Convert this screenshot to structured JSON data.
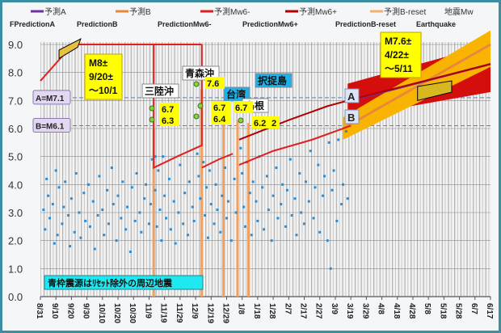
{
  "chart_data": {
    "type": "scatter",
    "legend": {
      "jp": [
        "予測A",
        "予測B",
        "予測Mw6-",
        "予測Mw6+",
        "予測B-reset",
        "地震Mw"
      ],
      "en": [
        "FPredictionA",
        "PredictionB",
        "PredictionMw6-",
        "PredictionMw6+",
        "PredictionB-reset",
        "Earthquake"
      ],
      "colors": [
        "#7030a0",
        "#e8893a",
        "#e02020",
        "#b00000",
        "#f0b070",
        "#2e8bd0"
      ]
    },
    "ylim": [
      0,
      9
    ],
    "yticks": [
      "0.0",
      "1.0",
      "2.0",
      "3.0",
      "4.0",
      "5.0",
      "6.0",
      "7.0",
      "8.0",
      "9.0"
    ],
    "xticks": [
      "8/31",
      "9/10",
      "9/20",
      "9/30",
      "10/10",
      "10/20",
      "10/30",
      "11/9",
      "11/19",
      "11/29",
      "12/9",
      "12/19",
      "12/29",
      "1/8",
      "1/18",
      "1/28",
      "2/7",
      "2/17",
      "2/27",
      "3/9",
      "3/19",
      "3/29",
      "4/8",
      "4/18",
      "4/28",
      "5/8",
      "5/18",
      "5/28",
      "6/7",
      "6/17"
    ],
    "x_unit": "days since 8/31",
    "ref_lines": [
      {
        "label": "A=M7.1",
        "value": 7.1
      },
      {
        "label": "B=M6.1",
        "value": 6.1
      }
    ],
    "mw6minus": [
      [
        [
          0,
          7.7
        ],
        [
          8,
          8.2
        ],
        [
          16,
          8.7
        ],
        [
          22,
          9.0
        ],
        [
          104,
          9.0
        ]
      ],
      [
        [
          73,
          9.0
        ],
        [
          73,
          4.6
        ],
        [
          88,
          5.0
        ],
        [
          104,
          5.4
        ],
        [
          104,
          9.0
        ]
      ],
      [
        [
          104,
          4.6
        ],
        [
          115,
          4.9
        ],
        [
          124,
          5.1
        ]
      ],
      [
        [
          128,
          4.7
        ],
        [
          150,
          5.2
        ],
        [
          175,
          5.6
        ],
        [
          200,
          6.1
        ]
      ]
    ],
    "mw6plus": [
      [
        128,
        5.6
      ],
      [
        160,
        6.3
      ],
      [
        185,
        6.8
      ],
      [
        205,
        7.1
      ],
      [
        290,
        8.3
      ]
    ],
    "predA": [
      [
        200,
        7.0
      ],
      [
        290,
        8.3
      ]
    ],
    "predB": [
      [
        195,
        6.0
      ],
      [
        290,
        9.0
      ]
    ],
    "band_red": {
      "x": [
        198,
        290
      ],
      "low": [
        6.4,
        7.3
      ],
      "high": [
        7.6,
        9.0
      ]
    },
    "breset_x": [
      73,
      104,
      118,
      127,
      134
    ],
    "breset_top": [
      6.0,
      7.4,
      6.2,
      6.3,
      6.2
    ],
    "points": [
      [
        2,
        3.1
      ],
      [
        3,
        2.4
      ],
      [
        4,
        4.2
      ],
      [
        5,
        3.6
      ],
      [
        6,
        2.8
      ],
      [
        8,
        3.3
      ],
      [
        9,
        1.9
      ],
      [
        10,
        4.5
      ],
      [
        11,
        2.2
      ],
      [
        12,
        3.9
      ],
      [
        14,
        2.6
      ],
      [
        15,
        3.2
      ],
      [
        16,
        4.1
      ],
      [
        18,
        2.9
      ],
      [
        19,
        1.8
      ],
      [
        20,
        3.5
      ],
      [
        22,
        2.3
      ],
      [
        23,
        4.4
      ],
      [
        25,
        3.0
      ],
      [
        26,
        2.1
      ],
      [
        28,
        3.7
      ],
      [
        29,
        2.7
      ],
      [
        31,
        4.0
      ],
      [
        32,
        2.5
      ],
      [
        34,
        3.4
      ],
      [
        35,
        1.7
      ],
      [
        37,
        2.9
      ],
      [
        38,
        4.3
      ],
      [
        40,
        3.1
      ],
      [
        41,
        2.2
      ],
      [
        43,
        3.8
      ],
      [
        44,
        2.6
      ],
      [
        46,
        4.6
      ],
      [
        47,
        3.3
      ],
      [
        49,
        2.0
      ],
      [
        50,
        3.6
      ],
      [
        52,
        2.8
      ],
      [
        53,
        4.1
      ],
      [
        55,
        2.4
      ],
      [
        56,
        3.2
      ],
      [
        58,
        1.6
      ],
      [
        59,
        3.9
      ],
      [
        61,
        2.7
      ],
      [
        62,
        4.4
      ],
      [
        64,
        3.0
      ],
      [
        65,
        2.3
      ],
      [
        67,
        3.5
      ],
      [
        68,
        4.0
      ],
      [
        70,
        2.6
      ],
      [
        71,
        3.3
      ],
      [
        72,
        4.9
      ],
      [
        74,
        5.0
      ],
      [
        74,
        3.8
      ],
      [
        75,
        2.5
      ],
      [
        76,
        4.5
      ],
      [
        77,
        3.1
      ],
      [
        78,
        2.0
      ],
      [
        79,
        5.0
      ],
      [
        80,
        3.6
      ],
      [
        81,
        2.8
      ],
      [
        83,
        4.2
      ],
      [
        84,
        2.4
      ],
      [
        86,
        3.4
      ],
      [
        87,
        1.9
      ],
      [
        89,
        3.0
      ],
      [
        90,
        4.7
      ],
      [
        92,
        2.6
      ],
      [
        93,
        3.7
      ],
      [
        95,
        2.2
      ],
      [
        96,
        4.1
      ],
      [
        98,
        3.2
      ],
      [
        99,
        2.7
      ],
      [
        101,
        5.1
      ],
      [
        102,
        4.3
      ],
      [
        103,
        3.5
      ],
      [
        105,
        4.8
      ],
      [
        106,
        2.9
      ],
      [
        107,
        3.9
      ],
      [
        108,
        2.1
      ],
      [
        109,
        4.5
      ],
      [
        110,
        3.3
      ],
      [
        112,
        2.6
      ],
      [
        113,
        4.0
      ],
      [
        114,
        3.1
      ],
      [
        116,
        2.3
      ],
      [
        117,
        3.6
      ],
      [
        119,
        4.6
      ],
      [
        120,
        2.8
      ],
      [
        121,
        3.4
      ],
      [
        123,
        2.0
      ],
      [
        125,
        4.2
      ],
      [
        126,
        3.0
      ],
      [
        129,
        5.3
      ],
      [
        130,
        4.4
      ],
      [
        131,
        3.2
      ],
      [
        132,
        2.5
      ],
      [
        133,
        4.8
      ],
      [
        135,
        3.7
      ],
      [
        136,
        2.2
      ],
      [
        137,
        4.1
      ],
      [
        139,
        3.4
      ],
      [
        140,
        2.7
      ],
      [
        141,
        5.0
      ],
      [
        143,
        3.9
      ],
      [
        144,
        2.4
      ],
      [
        146,
        4.3
      ],
      [
        147,
        3.1
      ],
      [
        149,
        2.0
      ],
      [
        150,
        3.6
      ],
      [
        152,
        4.6
      ],
      [
        153,
        2.8
      ],
      [
        155,
        3.3
      ],
      [
        156,
        4.0
      ],
      [
        158,
        2.5
      ],
      [
        159,
        3.8
      ],
      [
        161,
        4.9
      ],
      [
        162,
        2.9
      ],
      [
        164,
        3.5
      ],
      [
        165,
        2.2
      ],
      [
        167,
        4.4
      ],
      [
        168,
        3.0
      ],
      [
        170,
        2.6
      ],
      [
        171,
        4.1
      ],
      [
        173,
        3.4
      ],
      [
        174,
        5.2
      ],
      [
        176,
        2.8
      ],
      [
        177,
        3.9
      ],
      [
        179,
        4.7
      ],
      [
        180,
        2.3
      ],
      [
        182,
        3.6
      ],
      [
        183,
        4.3
      ],
      [
        185,
        2.0
      ],
      [
        186,
        5.5
      ],
      [
        187,
        1.0
      ],
      [
        188,
        3.8
      ],
      [
        189,
        4.5
      ],
      [
        191,
        2.7
      ],
      [
        192,
        5.6
      ],
      [
        194,
        3.3
      ],
      [
        195,
        4.0
      ],
      [
        197,
        5.9
      ],
      [
        198,
        3.5
      ]
    ]
  },
  "annotations": {
    "box1": [
      "M8±",
      "9/20±",
      "～10/1"
    ],
    "box2": [
      "M7.6±",
      "4/22±",
      "～5/11"
    ],
    "regions": [
      {
        "name": "三陸沖",
        "style": "white"
      },
      {
        "name": "青森沖",
        "style": "white"
      },
      {
        "name": "台湾",
        "style": "cyan"
      },
      {
        "name": "島根",
        "style": "white"
      },
      {
        "name": "択捉島",
        "style": "cyan"
      }
    ],
    "mags": [
      "6.7",
      "6.3",
      "7.6",
      "6.7",
      "6.4",
      "6.7",
      "6.2",
      "2"
    ],
    "line_a": "A",
    "line_b": "B",
    "note": "青枠震源はﾘｾｯﾄ除外の周辺地震"
  }
}
